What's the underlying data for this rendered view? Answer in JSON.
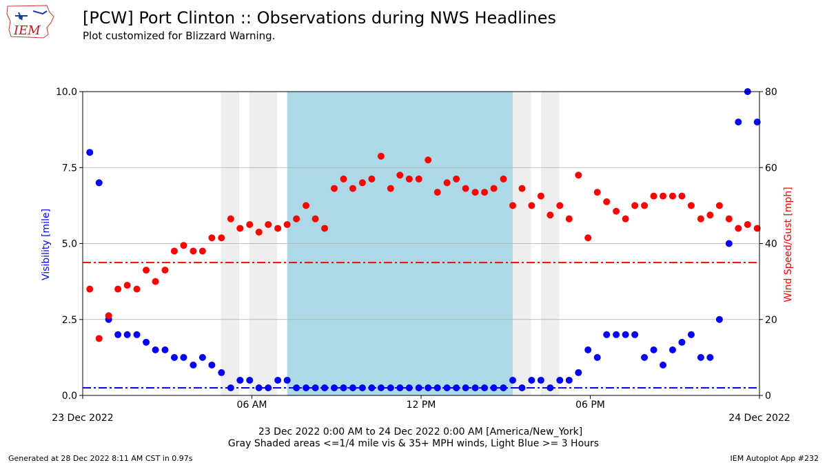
{
  "header": {
    "title": "[PCW] Port Clinton :: Observations during NWS Headlines",
    "subtitle": "Plot customized for Blizzard Warning."
  },
  "logo": {
    "text": "IEM"
  },
  "footer": {
    "generated": "Generated at 28 Dec 2022 8:11 AM CST in 0.97s",
    "app": "IEM Autoplot App #232"
  },
  "colors": {
    "visibility": "#0000ff",
    "wind": "#ff0000",
    "gray_shade": "#eeeeee",
    "blue_shade": "#add8e6",
    "grid": "#b0b0b0"
  },
  "chart_data": {
    "type": "scatter",
    "xlabel_line1": "23 Dec 2022 0:00 AM to 24 Dec 2022 0:00 AM [America/New_York]",
    "xlabel_line2": "Gray Shaded areas <=1/4 mile vis & 35+ MPH winds, Light Blue >= 3 Hours",
    "ylabel_left": "Visibility [mile]",
    "ylabel_right": "Wind Speed/Gust [mph]",
    "xlim_hours": [
      0,
      24
    ],
    "ylim_left": [
      0,
      10
    ],
    "ylim_right": [
      0,
      80
    ],
    "x_ticks": [
      {
        "hour": 0,
        "label": "23 Dec 2022"
      },
      {
        "hour": 6,
        "label": "06 AM"
      },
      {
        "hour": 12,
        "label": "12 PM"
      },
      {
        "hour": 18,
        "label": "06 PM"
      },
      {
        "hour": 24,
        "label": "24 Dec 2022"
      }
    ],
    "y_ticks_left": [
      "0.0",
      "2.5",
      "5.0",
      "7.5",
      "10.0"
    ],
    "y_ticks_right": [
      "0",
      "20",
      "40",
      "60",
      "80"
    ],
    "visibility_threshold": 0.25,
    "wind_threshold": 35,
    "gray_shaded_hours": [
      [
        4.9,
        5.55
      ],
      [
        5.9,
        6.9
      ],
      [
        15.25,
        15.9
      ],
      [
        16.25,
        16.9
      ]
    ],
    "blue_shaded_hours": [
      [
        7.25,
        15.25
      ]
    ],
    "series": [
      {
        "name": "Visibility",
        "axis": "left",
        "x": [
          0.25,
          0.58,
          0.92,
          1.25,
          1.58,
          1.92,
          2.25,
          2.58,
          2.92,
          3.25,
          3.58,
          3.92,
          4.25,
          4.58,
          4.92,
          5.25,
          5.58,
          5.92,
          6.25,
          6.58,
          6.92,
          7.25,
          7.58,
          7.92,
          8.25,
          8.58,
          8.92,
          9.25,
          9.58,
          9.92,
          10.25,
          10.58,
          10.92,
          11.25,
          11.58,
          11.92,
          12.25,
          12.58,
          12.92,
          13.25,
          13.58,
          13.92,
          14.25,
          14.58,
          14.92,
          15.25,
          15.58,
          15.92,
          16.25,
          16.58,
          16.92,
          17.25,
          17.58,
          17.92,
          18.25,
          18.58,
          18.92,
          19.25,
          19.58,
          19.92,
          20.25,
          20.58,
          20.92,
          21.25,
          21.58,
          21.92,
          22.25,
          22.58,
          22.92,
          23.25,
          23.58,
          23.92
        ],
        "values": [
          8,
          7,
          2.5,
          2,
          2,
          2,
          1.75,
          1.5,
          1.5,
          1.25,
          1.25,
          1,
          1.25,
          1,
          0.75,
          0.25,
          0.5,
          0.5,
          0.25,
          0.25,
          0.5,
          0.5,
          0.25,
          0.25,
          0.25,
          0.25,
          0.25,
          0.25,
          0.25,
          0.25,
          0.25,
          0.25,
          0.25,
          0.25,
          0.25,
          0.25,
          0.25,
          0.25,
          0.25,
          0.25,
          0.25,
          0.25,
          0.25,
          0.25,
          0.25,
          0.5,
          0.25,
          0.5,
          0.5,
          0.25,
          0.5,
          0.5,
          0.75,
          1.5,
          1.25,
          2,
          2,
          2,
          2,
          1.25,
          1.5,
          1,
          1.5,
          1.75,
          2,
          1.25,
          1.25,
          2.5,
          5,
          9,
          10,
          9
        ]
      },
      {
        "name": "Wind Speed/Gust",
        "axis": "right",
        "x": [
          0.25,
          0.58,
          0.92,
          1.25,
          1.58,
          1.92,
          2.25,
          2.58,
          2.92,
          3.25,
          3.58,
          3.92,
          4.25,
          4.58,
          4.92,
          5.25,
          5.58,
          5.92,
          6.25,
          6.58,
          6.92,
          7.25,
          7.58,
          7.92,
          8.25,
          8.58,
          8.92,
          9.25,
          9.58,
          9.92,
          10.25,
          10.58,
          10.92,
          11.25,
          11.58,
          11.92,
          12.25,
          12.58,
          12.92,
          13.25,
          13.58,
          13.92,
          14.25,
          14.58,
          14.92,
          15.25,
          15.58,
          15.92,
          16.25,
          16.58,
          16.92,
          17.25,
          17.58,
          17.92,
          18.25,
          18.58,
          18.92,
          19.25,
          19.58,
          19.92,
          20.25,
          20.58,
          20.92,
          21.25,
          21.58,
          21.92,
          22.25,
          22.58,
          22.92,
          23.25,
          23.58,
          23.92
        ],
        "values": [
          28,
          15,
          21,
          28,
          29,
          28,
          33,
          30,
          33,
          38,
          39.5,
          38,
          38,
          41.5,
          41.5,
          46.5,
          44,
          45,
          43,
          45,
          44,
          45,
          46.5,
          50,
          46.5,
          44,
          54.5,
          57,
          54.5,
          56,
          57,
          63,
          54.5,
          58,
          57,
          57,
          62,
          53.5,
          56,
          57,
          54.5,
          53.5,
          53.5,
          54.5,
          57,
          50,
          54.5,
          50,
          52.5,
          47.5,
          50,
          46.5,
          58,
          41.5,
          53.5,
          51,
          48.5,
          46.5,
          50,
          50,
          52.5,
          52.5,
          52.5,
          52.5,
          50,
          46.5,
          47.5,
          50,
          46.5,
          44,
          45,
          44
        ]
      }
    ]
  }
}
